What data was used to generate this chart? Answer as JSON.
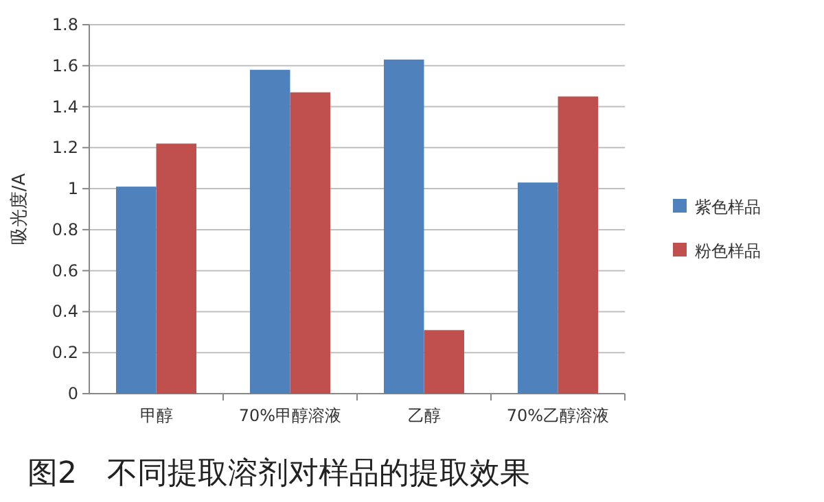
{
  "chart_data": {
    "type": "bar",
    "title": "图2　不同提取溶剂对样品的提取效果",
    "ylabel": "吸光度/A",
    "categories": [
      "甲醇",
      "70%甲醇溶液",
      "乙醇",
      "70%乙醇溶液"
    ],
    "series": [
      {
        "name": "紫色样品",
        "color": "#4f81bd",
        "values": [
          1.01,
          1.58,
          1.63,
          1.03
        ]
      },
      {
        "name": "粉色样品",
        "color": "#c0504d",
        "values": [
          1.22,
          1.47,
          0.31,
          1.45
        ]
      }
    ],
    "ylim": [
      0,
      1.8
    ],
    "yticks": [
      0,
      0.2,
      0.4,
      0.6,
      0.8,
      1,
      1.2,
      1.4,
      1.6,
      1.8
    ],
    "grid": "y",
    "legend": "right"
  }
}
